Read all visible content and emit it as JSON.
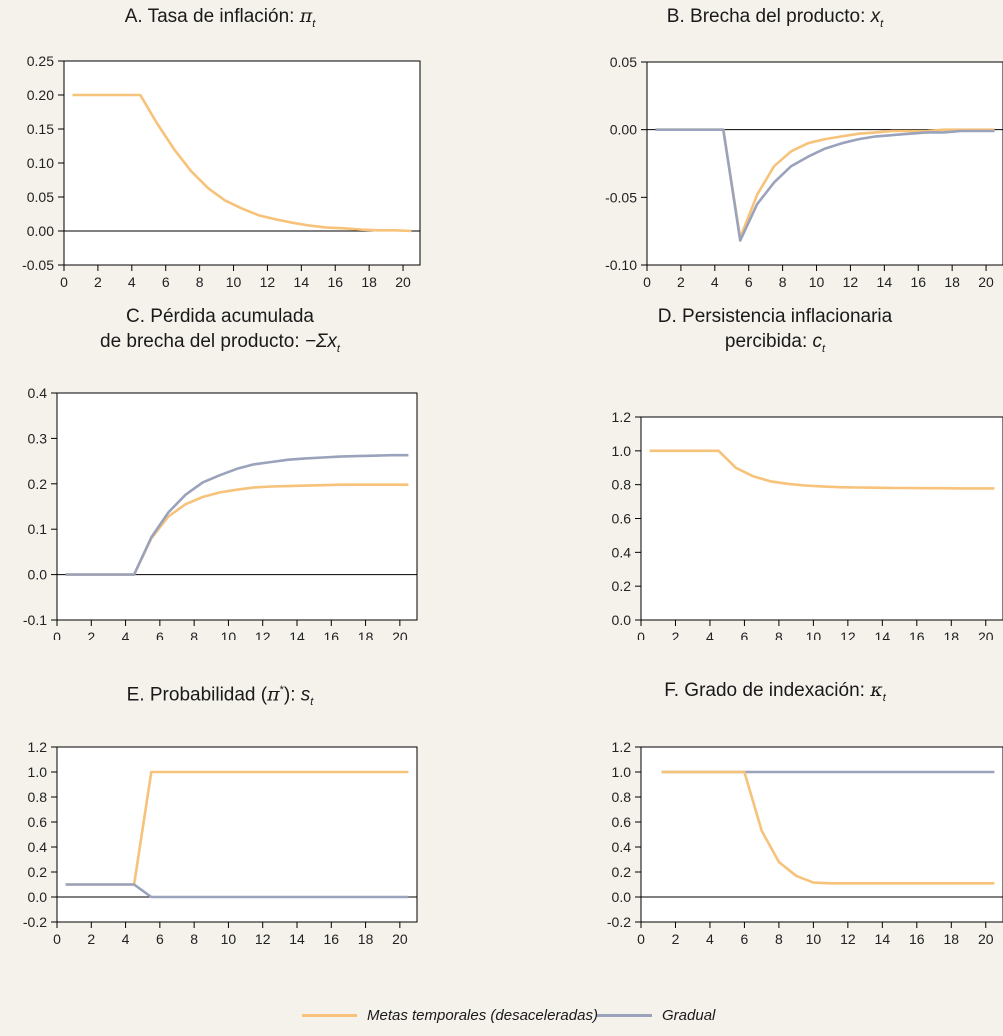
{
  "titles": {
    "a": "A. Tasa de inflación: ",
    "a_sym": "π",
    "b": "B. Brecha del producto: ",
    "b_sym": "x",
    "c_line1": "C. Pérdida acumulada",
    "c_line2": "de brecha del producto: ",
    "c_sym": "−Σx",
    "d_line1": "D. Persistencia inflacionaria",
    "d_line2": "percibida: ",
    "d_sym": "c",
    "e": "E. Probabilidad (",
    "e_sym": "π",
    "e_sup": "*",
    "e_tail": "): ",
    "e_sym2": "s",
    "f": "F. Grado de indexación: ",
    "f_sym": "κ",
    "sub_t": "t"
  },
  "legend": {
    "series_1": "Metas temporales (desaceleradas)",
    "series_2": "Gradual"
  },
  "colors": {
    "metas": "#f7c27a",
    "gradual": "#9aa3bb",
    "axis": "#000000",
    "background": "#f5f2ec",
    "plot_background": "#ffffff"
  },
  "chart_data": [
    {
      "id": "a",
      "type": "line",
      "title": "A. Tasa de inflación: π_t",
      "xlim": [
        0,
        21
      ],
      "ylim": [
        -0.05,
        0.25
      ],
      "x_ticks": [
        0,
        2,
        4,
        6,
        8,
        10,
        12,
        14,
        16,
        18,
        20
      ],
      "y_ticks": [
        -0.05,
        0.0,
        0.05,
        0.1,
        0.15,
        0.2,
        0.25
      ],
      "y_tick_labels": [
        "-0.05",
        "0.00",
        "0.05",
        "0.10",
        "0.15",
        "0.20",
        "0.25"
      ],
      "zero_line": true,
      "series": [
        {
          "name": "Metas temporales (desaceleradas)",
          "color": "#f7c27a",
          "x": [
            0.5,
            1.5,
            2.5,
            3.5,
            4.5,
            5.5,
            6.5,
            7.5,
            8.5,
            9.5,
            10.5,
            11.5,
            12.5,
            13.5,
            14.5,
            15.5,
            16.5,
            17.5,
            18.5,
            19.5,
            20.5
          ],
          "y": [
            0.2,
            0.2,
            0.2,
            0.2,
            0.2,
            0.158,
            0.12,
            0.088,
            0.063,
            0.045,
            0.033,
            0.023,
            0.017,
            0.012,
            0.008,
            0.005,
            0.004,
            0.002,
            0.001,
            0.001,
            0.0
          ]
        }
      ]
    },
    {
      "id": "b",
      "type": "line",
      "title": "B. Brecha del producto: x_t",
      "xlim": [
        0,
        21
      ],
      "ylim": [
        -0.1,
        0.05
      ],
      "x_ticks": [
        0,
        2,
        4,
        6,
        8,
        10,
        12,
        14,
        16,
        18,
        20
      ],
      "y_ticks": [
        -0.1,
        -0.05,
        0.0,
        0.05
      ],
      "y_tick_labels": [
        "-0.10",
        "-0.05",
        "0.00",
        "0.05"
      ],
      "zero_line": true,
      "series": [
        {
          "name": "Metas temporales (desaceleradas)",
          "color": "#f7c27a",
          "x": [
            0.5,
            1.5,
            2.5,
            3.5,
            4.5,
            5.5,
            6.5,
            7.5,
            8.5,
            9.5,
            10.5,
            11.5,
            12.5,
            13.5,
            14.5,
            15.5,
            16.5,
            17.5,
            18.5,
            19.5,
            20.5
          ],
          "y": [
            0,
            0,
            0,
            0,
            0,
            -0.08,
            -0.048,
            -0.027,
            -0.016,
            -0.01,
            -0.007,
            -0.005,
            -0.003,
            -0.002,
            -0.001,
            -0.001,
            -0.001,
            0,
            0,
            0,
            0
          ]
        },
        {
          "name": "Gradual",
          "color": "#9aa3bb",
          "x": [
            0.5,
            1.5,
            2.5,
            3.5,
            4.5,
            5.5,
            6.5,
            7.5,
            8.5,
            9.5,
            10.5,
            11.5,
            12.5,
            13.5,
            14.5,
            15.5,
            16.5,
            17.5,
            18.5,
            19.5,
            20.5
          ],
          "y": [
            0,
            0,
            0,
            0,
            0,
            -0.082,
            -0.055,
            -0.039,
            -0.027,
            -0.02,
            -0.014,
            -0.01,
            -0.007,
            -0.005,
            -0.004,
            -0.003,
            -0.002,
            -0.002,
            -0.001,
            -0.001,
            -0.001
          ]
        }
      ]
    },
    {
      "id": "c",
      "type": "line",
      "title": "C. Pérdida acumulada de brecha del producto: −Σx_t",
      "xlim": [
        0,
        21
      ],
      "ylim": [
        -0.1,
        0.4
      ],
      "x_ticks": [
        0,
        2,
        4,
        6,
        8,
        10,
        12,
        14,
        16,
        18,
        20
      ],
      "y_ticks": [
        -0.1,
        0.0,
        0.1,
        0.2,
        0.3,
        0.4
      ],
      "y_tick_labels": [
        "-0.1",
        "0.0",
        "0.1",
        "0.2",
        "0.3",
        "0.4"
      ],
      "zero_line": true,
      "series": [
        {
          "name": "Metas temporales (desaceleradas)",
          "color": "#f7c27a",
          "x": [
            0.5,
            1.5,
            2.5,
            3.5,
            4.5,
            5.5,
            6.5,
            7.5,
            8.5,
            9.5,
            10.5,
            11.5,
            12.5,
            13.5,
            14.5,
            15.5,
            16.5,
            17.5,
            18.5,
            19.5,
            20.5
          ],
          "y": [
            0,
            0,
            0,
            0,
            0,
            0.08,
            0.128,
            0.155,
            0.171,
            0.181,
            0.187,
            0.192,
            0.194,
            0.195,
            0.196,
            0.197,
            0.198,
            0.198,
            0.198,
            0.198,
            0.198
          ]
        },
        {
          "name": "Gradual",
          "color": "#9aa3bb",
          "x": [
            0.5,
            1.5,
            2.5,
            3.5,
            4.5,
            5.5,
            6.5,
            7.5,
            8.5,
            9.5,
            10.5,
            11.5,
            12.5,
            13.5,
            14.5,
            15.5,
            16.5,
            17.5,
            18.5,
            19.5,
            20.5
          ],
          "y": [
            0,
            0,
            0,
            0,
            0,
            0.082,
            0.137,
            0.176,
            0.203,
            0.219,
            0.233,
            0.243,
            0.248,
            0.253,
            0.256,
            0.258,
            0.26,
            0.261,
            0.262,
            0.263,
            0.263
          ]
        }
      ]
    },
    {
      "id": "d",
      "type": "line",
      "title": "D. Persistencia inflacionaria percibida: c_t",
      "xlim": [
        0,
        21
      ],
      "ylim": [
        0.0,
        1.2
      ],
      "x_ticks": [
        0,
        2,
        4,
        6,
        8,
        10,
        12,
        14,
        16,
        18,
        20
      ],
      "y_ticks": [
        0.0,
        0.2,
        0.4,
        0.6,
        0.8,
        1.0,
        1.2
      ],
      "y_tick_labels": [
        "0.0",
        "0.2",
        "0.4",
        "0.6",
        "0.8",
        "1.0",
        "1.2"
      ],
      "zero_line": false,
      "series": [
        {
          "name": "Metas temporales (desaceleradas)",
          "color": "#f7c27a",
          "x": [
            0.5,
            1.5,
            2.5,
            3.5,
            4.5,
            5.5,
            6.5,
            7.5,
            8.5,
            9.5,
            10.5,
            11.5,
            12.5,
            13.5,
            14.5,
            15.5,
            16.5,
            17.5,
            18.5,
            19.5,
            20.5
          ],
          "y": [
            1.0,
            1.0,
            1.0,
            1.0,
            1.0,
            0.9,
            0.85,
            0.82,
            0.805,
            0.795,
            0.79,
            0.785,
            0.783,
            0.782,
            0.78,
            0.78,
            0.779,
            0.779,
            0.778,
            0.778,
            0.778
          ]
        }
      ]
    },
    {
      "id": "e",
      "type": "line",
      "title": "E. Probabilidad (π*): s_t",
      "xlim": [
        0,
        21
      ],
      "ylim": [
        -0.2,
        1.2
      ],
      "x_ticks": [
        0,
        2,
        4,
        6,
        8,
        10,
        12,
        14,
        16,
        18,
        20
      ],
      "y_ticks": [
        -0.2,
        0.0,
        0.2,
        0.4,
        0.6,
        0.8,
        1.0,
        1.2
      ],
      "y_tick_labels": [
        "-0.2",
        "0.0",
        "0.2",
        "0.4",
        "0.6",
        "0.8",
        "1.0",
        "1.2"
      ],
      "zero_line": true,
      "series": [
        {
          "name": "Metas temporales (desaceleradas)",
          "color": "#f7c27a",
          "x": [
            0.5,
            4.5,
            5.5,
            20.5
          ],
          "y": [
            0.1,
            0.1,
            1.0,
            1.0
          ]
        },
        {
          "name": "Gradual",
          "color": "#9aa3bb",
          "x": [
            0.5,
            4.5,
            5.5,
            20.5
          ],
          "y": [
            0.1,
            0.1,
            0.0,
            0.0
          ]
        }
      ]
    },
    {
      "id": "f",
      "type": "line",
      "title": "F. Grado de indexación: κ_t",
      "xlim": [
        0,
        21
      ],
      "ylim": [
        -0.2,
        1.2
      ],
      "x_ticks": [
        0,
        2,
        4,
        6,
        8,
        10,
        12,
        14,
        16,
        18,
        20
      ],
      "y_ticks": [
        -0.2,
        0.0,
        0.2,
        0.4,
        0.6,
        0.8,
        1.0,
        1.2
      ],
      "y_tick_labels": [
        "-0.2",
        "0.0",
        "0.2",
        "0.4",
        "0.6",
        "0.8",
        "1.0",
        "1.2"
      ],
      "zero_line": true,
      "series": [
        {
          "name": "Gradual",
          "color": "#9aa3bb",
          "x": [
            1.2,
            20.5
          ],
          "y": [
            1.0,
            1.0
          ]
        },
        {
          "name": "Metas temporales (desaceleradas)",
          "color": "#f7c27a",
          "x": [
            1.2,
            6.0,
            7.0,
            8.0,
            9.0,
            10.0,
            11.0,
            12.0,
            13.0,
            14.0,
            15.0,
            16.0,
            17.0,
            18.0,
            19.0,
            20.5
          ],
          "y": [
            1.0,
            1.0,
            0.53,
            0.28,
            0.17,
            0.115,
            0.11,
            0.11,
            0.11,
            0.11,
            0.11,
            0.11,
            0.11,
            0.11,
            0.11,
            0.11
          ]
        }
      ]
    }
  ]
}
